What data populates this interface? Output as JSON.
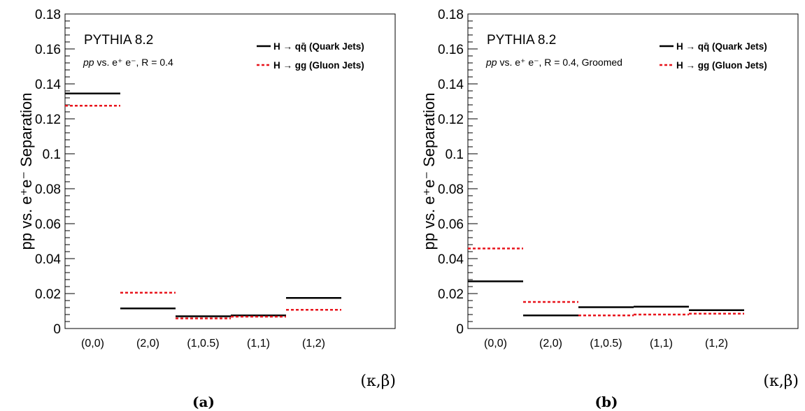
{
  "chart_data": [
    {
      "type": "step",
      "panel_label": "(a)",
      "generator": "PYTHIA 8.2",
      "subtitle_italic": "pp",
      "subtitle_rest": " vs. e⁺ e⁻, R = 0.4",
      "ylabel": "pp vs. e⁺e⁻ Separation",
      "xlabel": "(κ,β)",
      "ylim": [
        0,
        0.18
      ],
      "yticks": [
        "0",
        "0.02",
        "0.04",
        "0.06",
        "0.08",
        "0.1",
        "0.12",
        "0.14",
        "0.16",
        "0.18"
      ],
      "categories": [
        "(0,0)",
        "(2,0)",
        "(1,0.5)",
        "(1,1)",
        "(1,2)"
      ],
      "legend_position": "top-right",
      "series": [
        {
          "name": "H → qq̄ (Quark Jets)",
          "style": "solid",
          "color": "#000000",
          "values": [
            0.1345,
            0.0115,
            0.007,
            0.0075,
            0.0175
          ]
        },
        {
          "name": "H → gg (Gluon Jets)",
          "style": "dashed",
          "color": "#e8141c",
          "values": [
            0.1275,
            0.0205,
            0.0058,
            0.0068,
            0.0107
          ]
        }
      ]
    },
    {
      "type": "step",
      "panel_label": "(b)",
      "generator": "PYTHIA 8.2",
      "subtitle_italic": "pp",
      "subtitle_rest": " vs. e⁺ e⁻, R = 0.4, Groomed",
      "ylabel": "pp vs. e⁺e⁻ Separation",
      "xlabel": "(κ,β)",
      "ylim": [
        0,
        0.18
      ],
      "yticks": [
        "0",
        "0.02",
        "0.04",
        "0.06",
        "0.08",
        "0.1",
        "0.12",
        "0.14",
        "0.16",
        "0.18"
      ],
      "categories": [
        "(0,0)",
        "(2,0)",
        "(1,0.5)",
        "(1,1)",
        "(1,2)"
      ],
      "legend_position": "top-right",
      "series": [
        {
          "name": "H → qq̄ (Quark Jets)",
          "style": "solid",
          "color": "#000000",
          "values": [
            0.027,
            0.0075,
            0.0122,
            0.0125,
            0.0105
          ]
        },
        {
          "name": "H → gg (Gluon Jets)",
          "style": "dashed",
          "color": "#e8141c",
          "values": [
            0.0458,
            0.0152,
            0.0075,
            0.008,
            0.0085
          ]
        }
      ]
    }
  ]
}
